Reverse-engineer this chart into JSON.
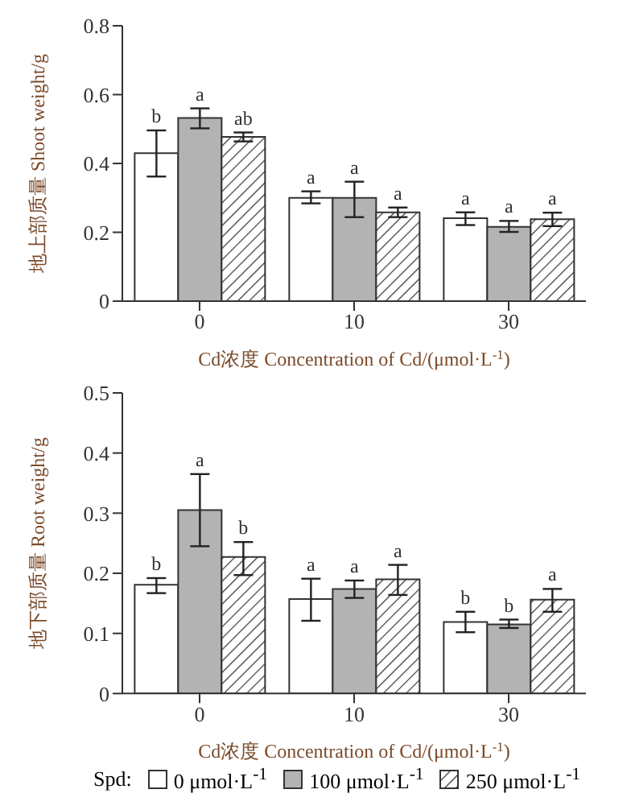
{
  "chart_data": [
    {
      "type": "bar",
      "categories": [
        "0",
        "10",
        "30"
      ],
      "ylabel": "地上部质量 Shoot weight/g",
      "xlabel": "Cd浓度 Concentration of Cd/(μmol·L$^{-1}$)",
      "ylim": [
        0,
        0.8
      ],
      "yticks": [
        0,
        0.2,
        0.4,
        0.6,
        0.8
      ],
      "legend": false,
      "series": [
        {
          "color": "#ffffff",
          "values": [
            0.43,
            0.3,
            0.241
          ],
          "errors": [
            [
              0.362,
              0.496
            ],
            [
              0.284,
              0.319
            ],
            [
              0.221,
              0.258
            ]
          ],
          "value_labels": [
            "b",
            "a",
            "a"
          ]
        },
        {
          "color": "#b3b3b3",
          "values": [
            0.532,
            0.3,
            0.216
          ],
          "errors": [
            [
              0.502,
              0.56
            ],
            [
              0.244,
              0.347
            ],
            [
              0.201,
              0.233
            ]
          ],
          "value_labels": [
            "a",
            "a",
            "a"
          ]
        },
        {
          "color": "#333333",
          "values": [
            0.477,
            0.258,
            0.238
          ],
          "errors": [
            [
              0.464,
              0.49
            ],
            [
              0.244,
              0.272
            ],
            [
              0.218,
              0.257
            ]
          ],
          "value_labels": [
            "ab",
            "a",
            "a"
          ]
        }
      ]
    },
    {
      "type": "bar",
      "categories": [
        "0",
        "10",
        "30"
      ],
      "ylabel": "地下部质量 Root weight/g",
      "xlabel": "Cd浓度 Concentration of Cd/(μmol·L$^{-1}$)",
      "ylim": [
        0,
        0.5
      ],
      "yticks": [
        0,
        0.1,
        0.2,
        0.3,
        0.4,
        0.5
      ],
      "legend": "bottom",
      "legend_title": "Spd:",
      "series": [
        {
          "name": "0 μmol·L$^{-1}$",
          "color": "#ffffff",
          "values": [
            0.181,
            0.157,
            0.119
          ],
          "errors": [
            [
              0.167,
              0.192
            ],
            [
              0.121,
              0.191
            ],
            [
              0.102,
              0.136
            ]
          ],
          "value_labels": [
            "b",
            "a",
            "b"
          ]
        },
        {
          "name": "100 μmol·L$^{-1}$",
          "color": "#b3b3b3",
          "values": [
            0.305,
            0.174,
            0.115
          ],
          "errors": [
            [
              0.245,
              0.365
            ],
            [
              0.159,
              0.188
            ],
            [
              0.109,
              0.123
            ]
          ],
          "value_labels": [
            "a",
            "a",
            "b"
          ]
        },
        {
          "name": "250 μmol·L$^{-1}$",
          "color": "#333333",
          "values": [
            0.227,
            0.19,
            0.156
          ],
          "errors": [
            [
              0.197,
              0.252
            ],
            [
              0.164,
              0.214
            ],
            [
              0.136,
              0.174
            ]
          ],
          "value_labels": [
            "b",
            "a",
            "a"
          ]
        }
      ]
    }
  ]
}
